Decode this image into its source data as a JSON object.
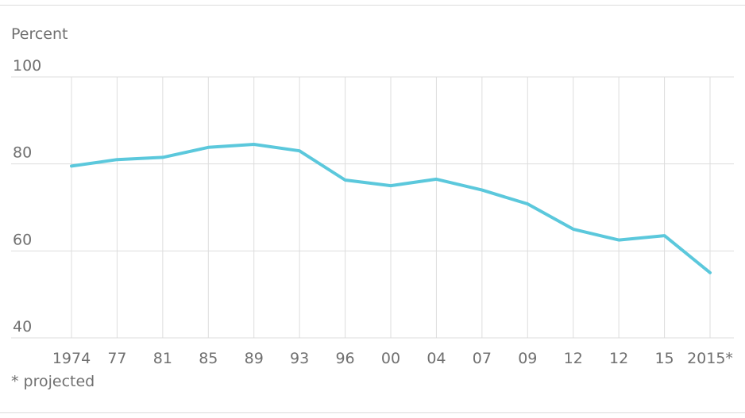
{
  "chart_data": {
    "type": "line",
    "ylabel": "Percent",
    "footnote": "* projected",
    "ylim": [
      40,
      100
    ],
    "yticks": [
      40,
      60,
      80,
      100
    ],
    "grid": true,
    "legend": "none",
    "line_color": "#5bc8dc",
    "grid_color": "#dddddd",
    "categories": [
      "1974",
      "77",
      "81",
      "85",
      "89",
      "93",
      "96",
      "00",
      "04",
      "07",
      "09",
      "12",
      "12",
      "15",
      "2015*"
    ],
    "series": [
      {
        "values": [
          79.5,
          81,
          81.5,
          83.8,
          84.5,
          83,
          76.3,
          75,
          76.5,
          74,
          70.8,
          65,
          62.5,
          63.5,
          55
        ]
      }
    ]
  }
}
